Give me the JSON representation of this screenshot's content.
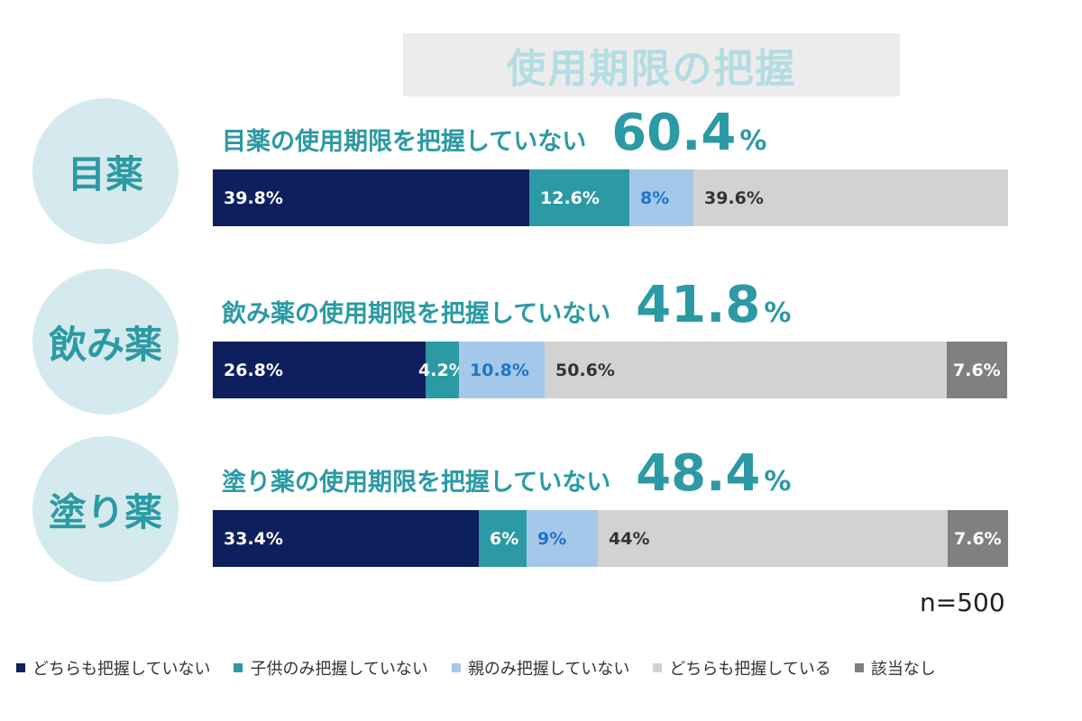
{
  "chart_data": {
    "type": "bar",
    "stacked": true,
    "orientation": "horizontal",
    "title": "使用期限の把握",
    "note": "n=500",
    "unit": "%",
    "categories": [
      "目薬",
      "飲み薬",
      "塗り薬"
    ],
    "headlines": [
      {
        "text": "目薬の使用期限を把握していない",
        "value": "60.4",
        "unit": "%"
      },
      {
        "text": "飲み薬の使用期限を把握していない",
        "value": "41.8",
        "unit": "%"
      },
      {
        "text": "塗り薬の使用期限を把握していない",
        "value": "48.4",
        "unit": "%"
      }
    ],
    "series": [
      {
        "name": "どちらも把握していない",
        "color": "#0d1f5c",
        "label_color": "#ffffff",
        "values": [
          39.8,
          26.8,
          33.4
        ],
        "labels": [
          "39.8%",
          "26.8%",
          "33.4%"
        ]
      },
      {
        "name": "子供のみ把握していない",
        "color": "#2b9aa4",
        "label_color": "#ffffff",
        "values": [
          12.6,
          4.2,
          6
        ],
        "labels": [
          "12.6%",
          "4.2%",
          "6%"
        ]
      },
      {
        "name": "親のみ把握していない",
        "color": "#a4c8ea",
        "label_color": "#1f74c8",
        "values": [
          8,
          10.8,
          9
        ],
        "labels": [
          "8%",
          "10.8%",
          "9%"
        ]
      },
      {
        "name": "どちらも把握している",
        "color": "#d2d2d2",
        "label_color": "#333333",
        "values": [
          39.6,
          50.6,
          44
        ],
        "labels": [
          "39.6%",
          "50.6%",
          "44%"
        ]
      },
      {
        "name": "該当なし",
        "color": "#808080",
        "label_color": "#ffffff",
        "values": [
          0,
          7.6,
          7.6
        ],
        "labels": [
          "",
          "7.6%",
          "7.6%"
        ]
      }
    ]
  }
}
